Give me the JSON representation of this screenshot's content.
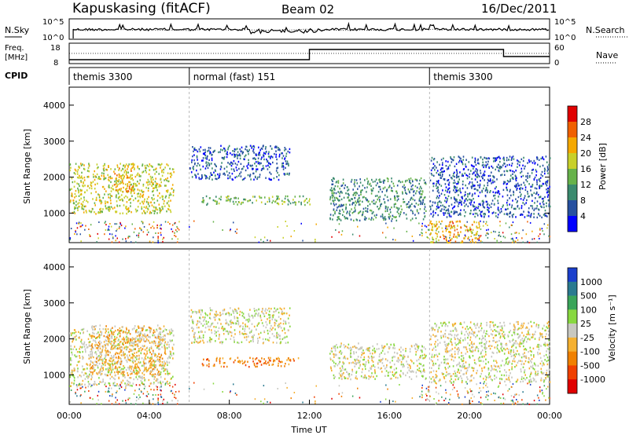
{
  "header": {
    "station": "Kapuskasing (fitACF)",
    "beam": "Beam 02",
    "date": "16/Dec/2011"
  },
  "top_panels": {
    "nsky_label": "N.Sky",
    "nsky_ticks": [
      "10^5",
      "10^0"
    ],
    "nsearch_label": "N.Search",
    "freq_label_1": "Freq.",
    "freq_label_2": "[MHz]",
    "freq_ticks": [
      "18",
      "8"
    ],
    "nave_ticks": [
      "60",
      "0"
    ],
    "nave_label": "Nave",
    "cpid_label": "CPID"
  },
  "cpid_segments": [
    {
      "label": "themis 3300",
      "start_hour": 0,
      "end_hour": 6
    },
    {
      "label": "normal (fast) 151",
      "start_hour": 6,
      "end_hour": 18
    },
    {
      "label": "themis 3300",
      "start_hour": 18,
      "end_hour": 24
    }
  ],
  "chart_data": [
    {
      "type": "heatmap",
      "quantity": "Power",
      "ylabel": "Slant Range [km]",
      "ylim": [
        180,
        4500
      ],
      "yticks": [
        1000,
        2000,
        3000,
        4000
      ],
      "xlim": [
        0,
        24
      ],
      "colorbar": {
        "label": "Power [dB]",
        "ticks": [
          "4",
          "8",
          "12",
          "16",
          "20",
          "24",
          "28"
        ],
        "colors": [
          "#0000ff",
          "#2650a0",
          "#3a8a6e",
          "#66b24a",
          "#c8d02a",
          "#f5a800",
          "#f06000",
          "#e00000"
        ]
      },
      "regions": [
        {
          "t0": 0.0,
          "t1": 5.2,
          "r0": 1000,
          "r1": 2400,
          "level": 4
        },
        {
          "t0": 2.2,
          "t1": 3.2,
          "r0": 1600,
          "r1": 2350,
          "level": 5
        },
        {
          "t0": 6.0,
          "t1": 11.0,
          "r0": 1950,
          "r1": 2900,
          "level": 1
        },
        {
          "t0": 6.6,
          "t1": 12.0,
          "r0": 1250,
          "r1": 1500,
          "level": 3
        },
        {
          "t0": 13.0,
          "t1": 17.8,
          "r0": 800,
          "r1": 2000,
          "level": 2
        },
        {
          "t0": 18.0,
          "t1": 24.0,
          "r0": 900,
          "r1": 2600,
          "level": 1
        },
        {
          "t0": 18.0,
          "t1": 20.5,
          "r0": 200,
          "r1": 800,
          "level": 5
        }
      ]
    },
    {
      "type": "heatmap",
      "quantity": "Velocity",
      "ylabel": "Slant Range [km]",
      "xlabel": "Time UT",
      "ylim": [
        180,
        4500
      ],
      "yticks": [
        1000,
        2000,
        3000,
        4000
      ],
      "xlim": [
        0,
        24
      ],
      "xticks": [
        "00:00",
        "04:00",
        "08:00",
        "12:00",
        "16:00",
        "20:00",
        "00:00"
      ],
      "colorbar": {
        "label": "Velocity [m s⁻¹]",
        "ticks": [
          "1000",
          "500",
          "100",
          "25",
          "-25",
          "-100",
          "-500",
          "-1000"
        ],
        "colors": [
          "#1a3fcc",
          "#2a7a90",
          "#3aa55a",
          "#88d840",
          "#c8c8c0",
          "#f5b030",
          "#f08000",
          "#f04000",
          "#e00000"
        ]
      },
      "regions": [
        {
          "t0": 0.0,
          "t1": 5.2,
          "r0": 700,
          "r1": 2300,
          "level": 4
        },
        {
          "t0": 1.0,
          "t1": 4.8,
          "r0": 1000,
          "r1": 2400,
          "level": 5
        },
        {
          "t0": 6.0,
          "t1": 11.0,
          "r0": 1900,
          "r1": 2900,
          "level": 4
        },
        {
          "t0": 6.6,
          "t1": 11.5,
          "r0": 1250,
          "r1": 1500,
          "level": 6
        },
        {
          "t0": 13.0,
          "t1": 17.8,
          "r0": 900,
          "r1": 1900,
          "level": 4
        },
        {
          "t0": 18.0,
          "t1": 24.0,
          "r0": 800,
          "r1": 2500,
          "level": 4
        }
      ]
    }
  ]
}
